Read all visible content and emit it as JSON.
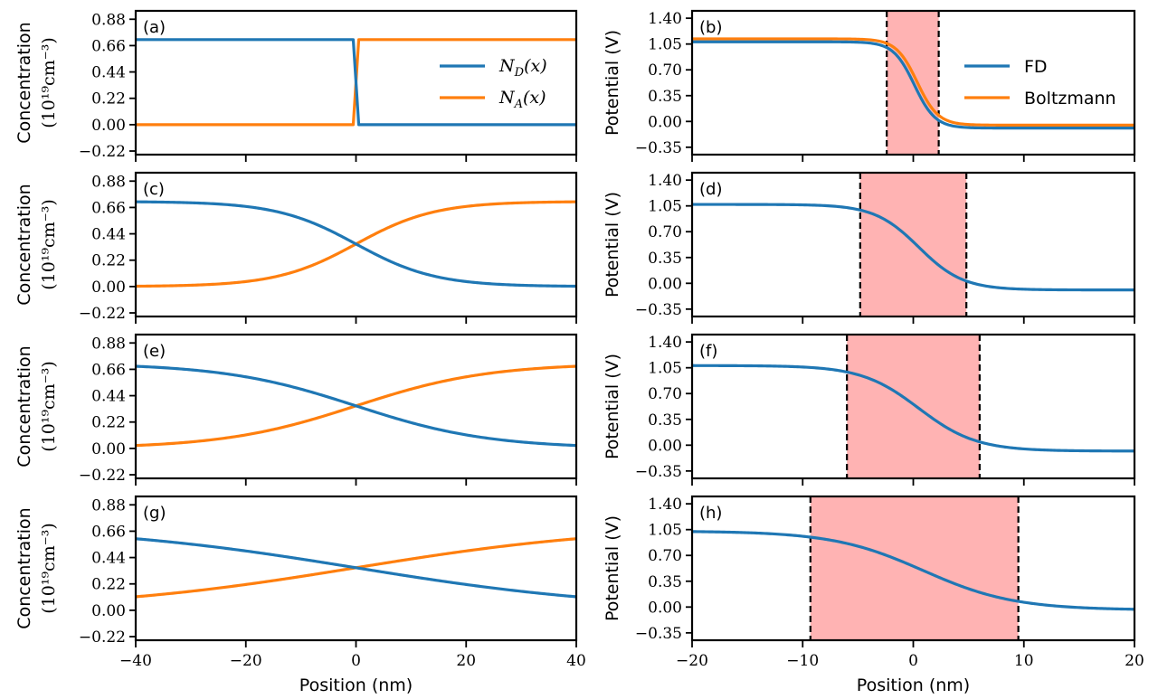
{
  "colors": {
    "series1": "#1f77b4",
    "series2": "#ff7f0e",
    "depletion": "#ff9999"
  },
  "chart_data": [
    {
      "id": "a",
      "panel_label": "(a)",
      "type": "line",
      "column": "left",
      "ylabel_line1": "Concentration",
      "ylabel_line2": "(10¹⁹cm⁻³)",
      "xlim": [
        -40,
        40
      ],
      "ylim": [
        -0.25,
        0.95
      ],
      "yticks": [
        -0.22,
        0.0,
        0.22,
        0.44,
        0.66,
        0.88
      ],
      "yticklabels": [
        "−0.22",
        "0.00",
        "0.22",
        "0.44",
        "0.66",
        "0.88"
      ],
      "xticks": [
        -40,
        -20,
        0,
        20,
        40
      ],
      "xticklabels": [],
      "model": "step",
      "center": 0,
      "width": 0.5,
      "max": 0.71,
      "legend": [
        "N_D(x)",
        "N_A(x)"
      ],
      "series": [
        {
          "name": "N_D(x)",
          "x": [
            -40,
            -0.5,
            0.5,
            40
          ],
          "values": [
            0.71,
            0.71,
            0.0,
            0.0
          ]
        },
        {
          "name": "N_A(x)",
          "x": [
            -40,
            -0.5,
            0.5,
            40
          ],
          "values": [
            0.0,
            0.0,
            0.71,
            0.71
          ]
        }
      ]
    },
    {
      "id": "b",
      "panel_label": "(b)",
      "type": "line",
      "column": "right",
      "ylabel_line1": "Potential (V)",
      "xlim": [
        -20,
        20
      ],
      "ylim": [
        -0.45,
        1.5
      ],
      "yticks": [
        -0.35,
        0.0,
        0.35,
        0.7,
        1.05,
        1.4
      ],
      "yticklabels": [
        "−0.35",
        "0.00",
        "0.35",
        "0.70",
        "1.05",
        "1.40"
      ],
      "xticks": [
        -20,
        -10,
        0,
        10,
        20
      ],
      "xticklabels": [],
      "depletion_region": [
        -2.4,
        2.3
      ],
      "legend": [
        "FD",
        "Boltzmann"
      ],
      "series": [
        {
          "name": "FD",
          "model": "potential",
          "vL": 1.08,
          "vR": -0.09,
          "center": 0.1,
          "width": 0.95,
          "xL": -2.4,
          "xR": 2.3
        },
        {
          "name": "Boltzmann",
          "model": "potential",
          "vL": 1.12,
          "vR": -0.05,
          "center": 0.35,
          "width": 0.95,
          "xL": -2.2,
          "xR": 2.3
        }
      ]
    },
    {
      "id": "c",
      "panel_label": "(c)",
      "type": "line",
      "column": "left",
      "ylabel_line1": "Concentration",
      "ylabel_line2": "(10¹⁹cm⁻³)",
      "xlim": [
        -40,
        40
      ],
      "ylim": [
        -0.25,
        0.95
      ],
      "yticks": [
        -0.22,
        0.0,
        0.22,
        0.44,
        0.66,
        0.88
      ],
      "yticklabels": [
        "−0.22",
        "0.00",
        "0.22",
        "0.44",
        "0.66",
        "0.88"
      ],
      "xticks": [
        -40,
        -20,
        0,
        20,
        40
      ],
      "xticklabels": [],
      "model": "sigmoid",
      "center": 0,
      "width": 7.2,
      "max": 0.71,
      "series": [
        {
          "name": "N_D(x)",
          "x": [
            -40,
            -20,
            -10,
            0,
            10,
            20,
            40
          ],
          "values": [
            0.705,
            0.66,
            0.58,
            0.355,
            0.13,
            0.05,
            0.005
          ]
        },
        {
          "name": "N_A(x)",
          "x": [
            -40,
            -20,
            -10,
            0,
            10,
            20,
            40
          ],
          "values": [
            0.005,
            0.05,
            0.13,
            0.355,
            0.58,
            0.66,
            0.705
          ]
        }
      ]
    },
    {
      "id": "d",
      "panel_label": "(d)",
      "type": "line",
      "column": "right",
      "ylabel_line1": "Potential (V)",
      "xlim": [
        -20,
        20
      ],
      "ylim": [
        -0.45,
        1.5
      ],
      "yticks": [
        -0.35,
        0.0,
        0.35,
        0.7,
        1.05,
        1.4
      ],
      "yticklabels": [
        "−0.35",
        "0.00",
        "0.35",
        "0.70",
        "1.05",
        "1.40"
      ],
      "xticks": [
        -20,
        -10,
        0,
        10,
        20
      ],
      "xticklabels": [],
      "depletion_region": [
        -4.8,
        4.8
      ],
      "series": [
        {
          "name": "FD",
          "model": "potential",
          "vL": 1.07,
          "vR": -0.09,
          "center": 0.5,
          "width": 2.0,
          "xL": -4.8,
          "xR": 4.8
        }
      ]
    },
    {
      "id": "e",
      "panel_label": "(e)",
      "type": "line",
      "column": "left",
      "ylabel_line1": "Concentration",
      "ylabel_line2": "(10¹⁹cm⁻³)",
      "xlim": [
        -40,
        40
      ],
      "ylim": [
        -0.25,
        0.95
      ],
      "yticks": [
        -0.22,
        0.0,
        0.22,
        0.44,
        0.66,
        0.88
      ],
      "yticklabels": [
        "−0.22",
        "0.00",
        "0.22",
        "0.44",
        "0.66",
        "0.88"
      ],
      "xticks": [
        -40,
        -20,
        0,
        20,
        40
      ],
      "xticklabels": [],
      "model": "sigmoid",
      "center": 0,
      "width": 12.0,
      "max": 0.71,
      "series": [
        {
          "name": "N_D(x)",
          "x": [
            -40,
            -20,
            0,
            20,
            40
          ],
          "values": [
            0.68,
            0.59,
            0.355,
            0.12,
            0.03
          ]
        },
        {
          "name": "N_A(x)",
          "x": [
            -40,
            -20,
            0,
            20,
            40
          ],
          "values": [
            0.03,
            0.12,
            0.355,
            0.59,
            0.68
          ]
        }
      ]
    },
    {
      "id": "f",
      "panel_label": "(f)",
      "type": "line",
      "column": "right",
      "ylabel_line1": "Potential (V)",
      "xlim": [
        -20,
        20
      ],
      "ylim": [
        -0.45,
        1.5
      ],
      "yticks": [
        -0.35,
        0.0,
        0.35,
        0.7,
        1.05,
        1.4
      ],
      "yticklabels": [
        "−0.35",
        "0.00",
        "0.35",
        "0.70",
        "1.05",
        "1.40"
      ],
      "xticks": [
        -20,
        -10,
        0,
        10,
        20
      ],
      "xticklabels": [],
      "depletion_region": [
        -6.0,
        6.0
      ],
      "series": [
        {
          "name": "FD",
          "model": "potential",
          "vL": 1.08,
          "vR": -0.08,
          "center": 0.5,
          "width": 2.6,
          "xL": -6.0,
          "xR": 6.0
        }
      ]
    },
    {
      "id": "g",
      "panel_label": "(g)",
      "type": "line",
      "column": "left",
      "ylabel_line1": "Concentration",
      "ylabel_line2": "(10¹⁹cm⁻³)",
      "xlim": [
        -40,
        40
      ],
      "ylim": [
        -0.25,
        0.95
      ],
      "yticks": [
        -0.22,
        0.0,
        0.22,
        0.44,
        0.66,
        0.88
      ],
      "yticklabels": [
        "−0.22",
        "0.00",
        "0.22",
        "0.44",
        "0.66",
        "0.88"
      ],
      "xticks": [
        -40,
        -20,
        0,
        20,
        40
      ],
      "xticklabels": [
        "−40",
        "−20",
        "0",
        "20",
        "40"
      ],
      "xlabel": "Position (nm)",
      "model": "sigmoid",
      "center": 0,
      "width": 24.0,
      "max": 0.71,
      "series": [
        {
          "name": "N_D(x)",
          "x": [
            -40,
            -20,
            0,
            20,
            40
          ],
          "values": [
            0.59,
            0.49,
            0.355,
            0.22,
            0.12
          ]
        },
        {
          "name": "N_A(x)",
          "x": [
            -40,
            -20,
            0,
            20,
            40
          ],
          "values": [
            0.12,
            0.22,
            0.355,
            0.49,
            0.59
          ]
        }
      ]
    },
    {
      "id": "h",
      "panel_label": "(h)",
      "type": "line",
      "column": "right",
      "ylabel_line1": "Potential (V)",
      "xlim": [
        -20,
        20
      ],
      "ylim": [
        -0.45,
        1.5
      ],
      "yticks": [
        -0.35,
        0.0,
        0.35,
        0.7,
        1.05,
        1.4
      ],
      "yticklabels": [
        "−0.35",
        "0.00",
        "0.35",
        "0.70",
        "1.05",
        "1.40"
      ],
      "xticks": [
        -20,
        -10,
        0,
        10,
        20
      ],
      "xticklabels": [
        "−20",
        "−10",
        "0",
        "10",
        "20"
      ],
      "xlabel": "Position (nm)",
      "depletion_region": [
        -9.3,
        9.5
      ],
      "series": [
        {
          "name": "FD",
          "model": "potential",
          "vL": 1.03,
          "vR": -0.04,
          "center": 0.9,
          "width": 4.1,
          "xL": -9.3,
          "xR": 9.5
        }
      ]
    }
  ]
}
